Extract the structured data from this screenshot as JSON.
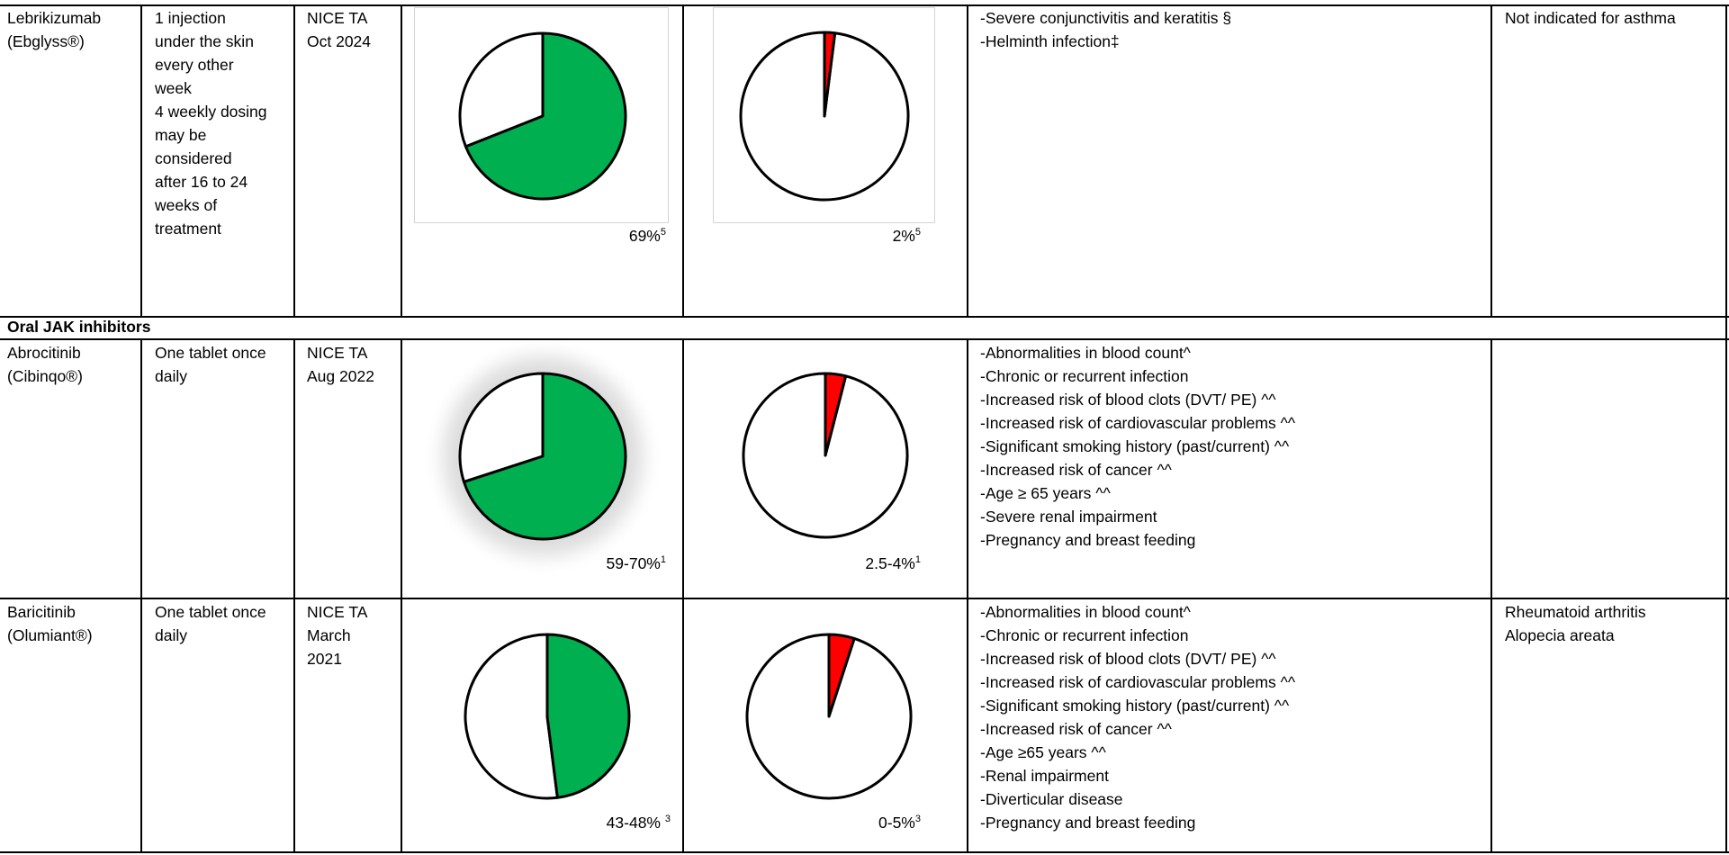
{
  "colors": {
    "efficacy": "#00b050",
    "side_effect": "#ff0000",
    "empty": "#ffffff"
  },
  "section": {
    "oral_jak_title": "Oral JAK inhibitors"
  },
  "rows": [
    {
      "drug_line1": "Lebrikizumab",
      "drug_line2": "(Ebglyss®)",
      "dosing": [
        "1 injection",
        "under the skin",
        "every other",
        "week",
        "4 weekly dosing",
        "may be",
        "considered",
        "after 16 to 24",
        "weeks of",
        "treatment"
      ],
      "nice": [
        "NICE TA",
        "Oct 2024"
      ],
      "efficacy_label": "69%",
      "efficacy_ref": "5",
      "side_label": "2%",
      "side_ref": "5",
      "cautions": [
        "-Severe conjunctivitis and keratitis §",
        "-Helminth infection‡"
      ],
      "other_uses": [
        "Not indicated for asthma"
      ]
    },
    {
      "drug_line1": "Abrocitinib",
      "drug_line2": "(Cibinqo®)",
      "dosing": [
        "One tablet once",
        "daily"
      ],
      "nice": [
        "NICE TA",
        "Aug 2022"
      ],
      "efficacy_label": "59-70%",
      "efficacy_ref": "1",
      "side_label": "2.5-4%",
      "side_ref": "1",
      "cautions": [
        "-Abnormalities in blood count^",
        "-Chronic or recurrent infection",
        "-Increased risk of blood clots (DVT/ PE) ^^",
        "-Increased risk of cardiovascular problems ^^",
        "-Significant smoking history (past/current) ^^",
        "-Increased risk of cancer ^^",
        "-Age ≥ 65 years ^^",
        "-Severe renal impairment",
        "-Pregnancy and breast feeding"
      ],
      "other_uses": []
    },
    {
      "drug_line1": "Baricitinib",
      "drug_line2": "(Olumiant®)",
      "dosing": [
        "One tablet once",
        "daily"
      ],
      "nice": [
        "NICE TA",
        "March",
        "2021"
      ],
      "efficacy_label": "43-48%",
      "efficacy_ref": "3",
      "side_label": "0-5%",
      "side_ref": "3",
      "cautions": [
        "-Abnormalities in blood count^",
        "-Chronic or recurrent infection",
        "-Increased risk of blood clots (DVT/ PE) ^^",
        "-Increased risk of cardiovascular problems ^^",
        "-Significant smoking history (past/current) ^^",
        "-Increased risk of cancer ^^",
        "-Age ≥65 years ^^",
        "-Renal impairment",
        "-Diverticular disease",
        "-Pregnancy and breast feeding"
      ],
      "other_uses": [
        "Rheumatoid arthritis",
        "Alopecia areata"
      ]
    }
  ],
  "chart_data": [
    {
      "type": "pie",
      "name": "lebrikizumab-efficacy",
      "values": [
        69,
        31
      ],
      "colors": [
        "#00b050",
        "#ffffff"
      ]
    },
    {
      "type": "pie",
      "name": "lebrikizumab-side-effects",
      "values": [
        2,
        98
      ],
      "colors": [
        "#ff0000",
        "#ffffff"
      ]
    },
    {
      "type": "pie",
      "name": "abrocitinib-efficacy",
      "values": [
        70,
        30
      ],
      "colors": [
        "#00b050",
        "#ffffff"
      ]
    },
    {
      "type": "pie",
      "name": "abrocitinib-side-effects",
      "values": [
        4,
        96
      ],
      "colors": [
        "#ff0000",
        "#ffffff"
      ]
    },
    {
      "type": "pie",
      "name": "baricitinib-efficacy",
      "values": [
        48,
        52
      ],
      "colors": [
        "#00b050",
        "#ffffff"
      ]
    },
    {
      "type": "pie",
      "name": "baricitinib-side-effects",
      "values": [
        5,
        95
      ],
      "colors": [
        "#ff0000",
        "#ffffff"
      ]
    }
  ]
}
